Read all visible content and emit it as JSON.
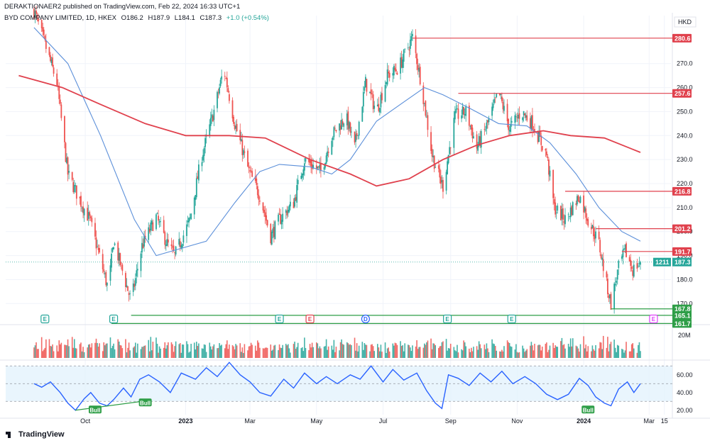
{
  "header": {
    "published_by": "DERAKTIONAER2 published on TradingView.com, Feb 22, 2024 16:33 UTC+1",
    "symbol": "BYD COMPANY LIMITED, 1D, HKEX",
    "open": "O186.2",
    "high": "H187.9",
    "low": "L184.1",
    "close": "C187.3",
    "change": "+1.0 (+0.54%)"
  },
  "currency": "HKD",
  "branding": "TradingView",
  "colors": {
    "up": "#26a69a",
    "down": "#ef5350",
    "sma_short": "#5b8fd9",
    "sma_long": "#e0414d",
    "support": "#2e9e47",
    "resistance": "#e0414d",
    "rsi_line": "#2962ff",
    "rsi_band": "#e3f2fd"
  },
  "chart_data": [
    {
      "type": "candlestick",
      "title": "BYD COMPANY LIMITED, 1D, HKEX",
      "currency": "HKD",
      "y_ticks": [
        "170.0",
        "180.0",
        "190.0",
        "200.0",
        "210.0",
        "220.0",
        "230.0",
        "240.0",
        "250.0",
        "260.0",
        "270.0"
      ],
      "x_ticks": [
        "Oct",
        "2023",
        "Mar",
        "May",
        "Jul",
        "Sep",
        "Nov",
        "2024",
        "Mar",
        "15"
      ],
      "last_price": "187.3",
      "countdown": "1211",
      "x_range": [
        "2022-08",
        "2024-03"
      ],
      "ylim": [
        163,
        290
      ],
      "levels": [
        {
          "value": 280.6,
          "label": "280.6",
          "kind": "resistance"
        },
        {
          "value": 257.6,
          "label": "257.6",
          "kind": "resistance"
        },
        {
          "value": 216.8,
          "label": "216.8",
          "kind": "resistance"
        },
        {
          "value": 201.2,
          "label": "201.2",
          "kind": "resistance"
        },
        {
          "value": 191.7,
          "label": "191.7",
          "kind": "resistance"
        },
        {
          "value": 167.8,
          "label": "167.8",
          "kind": "support"
        },
        {
          "value": 165.1,
          "label": "165.1",
          "kind": "support"
        },
        {
          "value": 161.7,
          "label": "161.7",
          "kind": "support"
        }
      ],
      "close_path": [
        [
          "2022-08-15",
          292
        ],
        [
          "2022-08-25",
          278
        ],
        [
          "2022-09-05",
          262
        ],
        [
          "2022-09-15",
          224
        ],
        [
          "2022-09-25",
          214
        ],
        [
          "2022-10-05",
          205
        ],
        [
          "2022-10-15",
          188
        ],
        [
          "2022-10-22",
          176
        ],
        [
          "2022-10-27",
          196
        ],
        [
          "2022-11-05",
          182
        ],
        [
          "2022-11-12",
          171
        ],
        [
          "2022-11-22",
          194
        ],
        [
          "2022-12-05",
          206
        ],
        [
          "2022-12-15",
          195
        ],
        [
          "2022-12-22",
          190
        ],
        [
          "2023-01-05",
          205
        ],
        [
          "2023-01-15",
          230
        ],
        [
          "2023-01-28",
          252
        ],
        [
          "2023-02-05",
          268
        ],
        [
          "2023-02-15",
          245
        ],
        [
          "2023-02-28",
          225
        ],
        [
          "2023-03-10",
          215
        ],
        [
          "2023-03-20",
          198
        ],
        [
          "2023-03-28",
          205
        ],
        [
          "2023-04-10",
          212
        ],
        [
          "2023-04-20",
          230
        ],
        [
          "2023-05-05",
          225
        ],
        [
          "2023-05-15",
          240
        ],
        [
          "2023-05-28",
          248
        ],
        [
          "2023-06-05",
          235
        ],
        [
          "2023-06-15",
          262
        ],
        [
          "2023-06-25",
          250
        ],
        [
          "2023-07-05",
          265
        ],
        [
          "2023-07-15",
          268
        ],
        [
          "2023-07-25",
          278
        ],
        [
          "2023-07-28",
          281
        ],
        [
          "2023-08-05",
          262
        ],
        [
          "2023-08-15",
          232
        ],
        [
          "2023-08-22",
          222
        ],
        [
          "2023-08-25",
          219
        ],
        [
          "2023-09-05",
          248
        ],
        [
          "2023-09-15",
          250
        ],
        [
          "2023-09-25",
          235
        ],
        [
          "2023-10-05",
          245
        ],
        [
          "2023-10-15",
          258
        ],
        [
          "2023-10-25",
          243
        ],
        [
          "2023-11-05",
          250
        ],
        [
          "2023-11-15",
          245
        ],
        [
          "2023-11-28",
          232
        ],
        [
          "2023-12-05",
          210
        ],
        [
          "2023-12-15",
          205
        ],
        [
          "2023-12-28",
          215
        ],
        [
          "2024-01-05",
          205
        ],
        [
          "2024-01-15",
          195
        ],
        [
          "2024-01-22",
          178
        ],
        [
          "2024-01-26",
          170
        ],
        [
          "2024-02-02",
          185
        ],
        [
          "2024-02-08",
          192
        ],
        [
          "2024-02-15",
          184
        ],
        [
          "2024-02-22",
          187.3
        ]
      ],
      "series": [
        {
          "name": "",
          "kind": "moving-average-short",
          "values": [
            [
              "2022-08-15",
              285
            ],
            [
              "2022-09-15",
              270
            ],
            [
              "2022-10-15",
              240
            ],
            [
              "2022-11-15",
              205
            ],
            [
              "2022-12-05",
              190
            ],
            [
              "2022-12-28",
              193
            ],
            [
              "2023-01-20",
              196
            ],
            [
              "2023-02-15",
              212
            ],
            [
              "2023-03-10",
              225
            ],
            [
              "2023-03-28",
              228
            ],
            [
              "2023-04-25",
              227
            ],
            [
              "2023-05-15",
              224
            ],
            [
              "2023-06-01",
              230
            ],
            [
              "2023-06-25",
              246
            ],
            [
              "2023-07-20",
              254
            ],
            [
              "2023-08-08",
              260
            ],
            [
              "2023-08-25",
              257
            ],
            [
              "2023-09-20",
              251
            ],
            [
              "2023-10-15",
              245
            ],
            [
              "2023-11-10",
              244
            ],
            [
              "2023-12-01",
              237
            ],
            [
              "2023-12-25",
              224
            ],
            [
              "2024-01-15",
              210
            ],
            [
              "2024-02-05",
              200
            ],
            [
              "2024-02-22",
              196
            ]
          ]
        },
        {
          "name": "",
          "kind": "moving-average-long",
          "values": [
            [
              "2022-08-01",
              265
            ],
            [
              "2022-09-10",
              260
            ],
            [
              "2022-10-15",
              253
            ],
            [
              "2022-11-25",
              245
            ],
            [
              "2023-01-01",
              240
            ],
            [
              "2023-02-10",
              240
            ],
            [
              "2023-03-15",
              239
            ],
            [
              "2023-04-25",
              230
            ],
            [
              "2023-06-01",
              224
            ],
            [
              "2023-06-25",
              219
            ],
            [
              "2023-07-25",
              222
            ],
            [
              "2023-08-25",
              230
            ],
            [
              "2023-09-25",
              236
            ],
            [
              "2023-10-25",
              240
            ],
            [
              "2023-11-25",
              242
            ],
            [
              "2023-12-20",
              240
            ],
            [
              "2024-01-20",
              239
            ],
            [
              "2024-02-22",
              233
            ]
          ]
        }
      ],
      "event_markers": [
        {
          "label": "E",
          "date": "2022-08-25"
        },
        {
          "label": "E",
          "date": "2022-10-27"
        },
        {
          "label": "E",
          "date": "2023-03-28"
        },
        {
          "label": "E",
          "date": "2023-04-25"
        },
        {
          "label": "D",
          "date": "2023-06-15"
        },
        {
          "label": "E",
          "date": "2023-08-29"
        },
        {
          "label": "E",
          "date": "2023-10-27"
        },
        {
          "label": "E",
          "date": "2024-03-05"
        }
      ]
    },
    {
      "type": "bar",
      "title": "",
      "y_ticks": [
        "20M"
      ],
      "ylim": [
        0,
        25
      ]
    },
    {
      "type": "line",
      "title": "",
      "y_ticks": [
        "20.00",
        "40.00",
        "60.00"
      ],
      "ylim": [
        15,
        75
      ],
      "band": [
        30,
        70
      ],
      "midline": 50,
      "series": [
        {
          "name": "",
          "values": [
            [
              "2022-08-15",
              50
            ],
            [
              "2022-08-22",
              46
            ],
            [
              "2022-08-30",
              52
            ],
            [
              "2022-09-08",
              40
            ],
            [
              "2022-09-15",
              28
            ],
            [
              "2022-09-22",
              20
            ],
            [
              "2022-09-30",
              33
            ],
            [
              "2022-10-06",
              40
            ],
            [
              "2022-10-14",
              28
            ],
            [
              "2022-10-21",
              25
            ],
            [
              "2022-10-27",
              32
            ],
            [
              "2022-11-05",
              45
            ],
            [
              "2022-11-12",
              35
            ],
            [
              "2022-11-20",
              55
            ],
            [
              "2022-11-28",
              60
            ],
            [
              "2022-12-08",
              52
            ],
            [
              "2022-12-18",
              40
            ],
            [
              "2022-12-28",
              62
            ],
            [
              "2023-01-10",
              55
            ],
            [
              "2023-01-20",
              68
            ],
            [
              "2023-01-30",
              58
            ],
            [
              "2023-02-10",
              74
            ],
            [
              "2023-02-20",
              60
            ],
            [
              "2023-03-01",
              52
            ],
            [
              "2023-03-10",
              40
            ],
            [
              "2023-03-20",
              36
            ],
            [
              "2023-04-01",
              55
            ],
            [
              "2023-04-10",
              45
            ],
            [
              "2023-04-20",
              62
            ],
            [
              "2023-05-01",
              50
            ],
            [
              "2023-05-10",
              58
            ],
            [
              "2023-05-20",
              50
            ],
            [
              "2023-06-01",
              60
            ],
            [
              "2023-06-10",
              55
            ],
            [
              "2023-06-20",
              70
            ],
            [
              "2023-07-01",
              52
            ],
            [
              "2023-07-10",
              66
            ],
            [
              "2023-07-20",
              54
            ],
            [
              "2023-08-01",
              62
            ],
            [
              "2023-08-10",
              42
            ],
            [
              "2023-08-18",
              28
            ],
            [
              "2023-08-24",
              22
            ],
            [
              "2023-08-30",
              60
            ],
            [
              "2023-09-08",
              56
            ],
            [
              "2023-09-18",
              48
            ],
            [
              "2023-09-28",
              62
            ],
            [
              "2023-10-08",
              52
            ],
            [
              "2023-10-18",
              64
            ],
            [
              "2023-10-28",
              50
            ],
            [
              "2023-11-08",
              58
            ],
            [
              "2023-11-18",
              50
            ],
            [
              "2023-11-28",
              38
            ],
            [
              "2023-12-08",
              32
            ],
            [
              "2023-12-18",
              38
            ],
            [
              "2023-12-28",
              56
            ],
            [
              "2024-01-05",
              48
            ],
            [
              "2024-01-12",
              35
            ],
            [
              "2024-01-20",
              28
            ],
            [
              "2024-01-26",
              25
            ],
            [
              "2024-02-02",
              44
            ],
            [
              "2024-02-10",
              52
            ],
            [
              "2024-02-16",
              40
            ],
            [
              "2024-02-22",
              50
            ]
          ]
        }
      ],
      "annotations": [
        {
          "label": "Bull",
          "date": "2022-10-10"
        },
        {
          "label": "Bull",
          "date": "2022-11-25"
        },
        {
          "label": "Bull",
          "date": "2024-01-05"
        }
      ]
    }
  ]
}
